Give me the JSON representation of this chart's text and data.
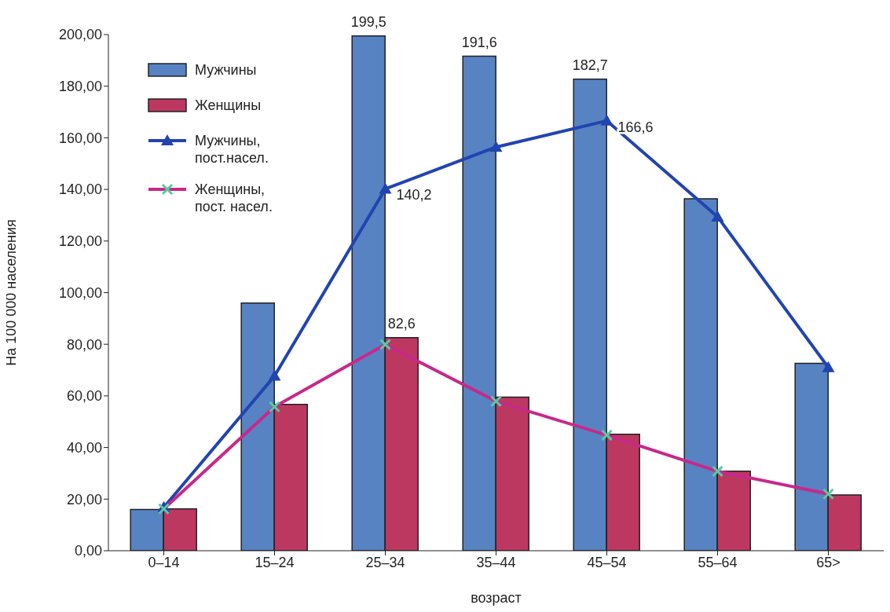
{
  "chart_data": {
    "type": "bar",
    "xlabel": "возраст",
    "ylabel": "На 100 000 населения",
    "categories": [
      "0–14",
      "15–24",
      "25–34",
      "35–44",
      "45–54",
      "55–64",
      "65>"
    ],
    "series": [
      {
        "name": "Мужчины",
        "color": "#5783c3",
        "values": [
          16,
          96,
          199.5,
          191.6,
          182.7,
          136.4,
          72.6
        ],
        "value_labels": [
          null,
          null,
          "199,5",
          "191,6",
          "182,7",
          null,
          null
        ]
      },
      {
        "name": "Женщины",
        "color": "#bd3861",
        "values": [
          16.2,
          56.7,
          82.6,
          59.5,
          45.1,
          30.8,
          21.6
        ],
        "value_labels": [
          null,
          null,
          "82,6",
          null,
          null,
          null,
          null
        ]
      },
      {
        "name": "Мужчины, пост.насел.",
        "type": "line",
        "color": "#2244b0",
        "marker": "triangle",
        "values": [
          16.8,
          67.7,
          140.2,
          156.4,
          166.6,
          129.4,
          71
        ],
        "value_labels": [
          null,
          null,
          "140,2",
          null,
          "166,6",
          null,
          null
        ]
      },
      {
        "name": "Женщины, пост. насел.",
        "type": "line",
        "color": "#c8288a",
        "marker": "cross",
        "values": [
          16.2,
          55.8,
          79.9,
          57.9,
          44.8,
          30.8,
          22
        ]
      }
    ],
    "ylim": [
      0,
      200
    ],
    "yticks": [
      {
        "value": 0,
        "label": "0,00"
      },
      {
        "value": 20,
        "label": "20,00"
      },
      {
        "value": 40,
        "label": "40,00"
      },
      {
        "value": 60,
        "label": "60,00"
      },
      {
        "value": 80,
        "label": "80,00"
      },
      {
        "value": 100,
        "label": "100,00"
      },
      {
        "value": 120,
        "label": "120,00"
      },
      {
        "value": 140,
        "label": "140,00"
      },
      {
        "value": 160,
        "label": "160,00"
      },
      {
        "value": 180,
        "label": "180,00"
      },
      {
        "value": 200,
        "label": "200,00"
      }
    ],
    "grid": false,
    "legend": "top left"
  }
}
